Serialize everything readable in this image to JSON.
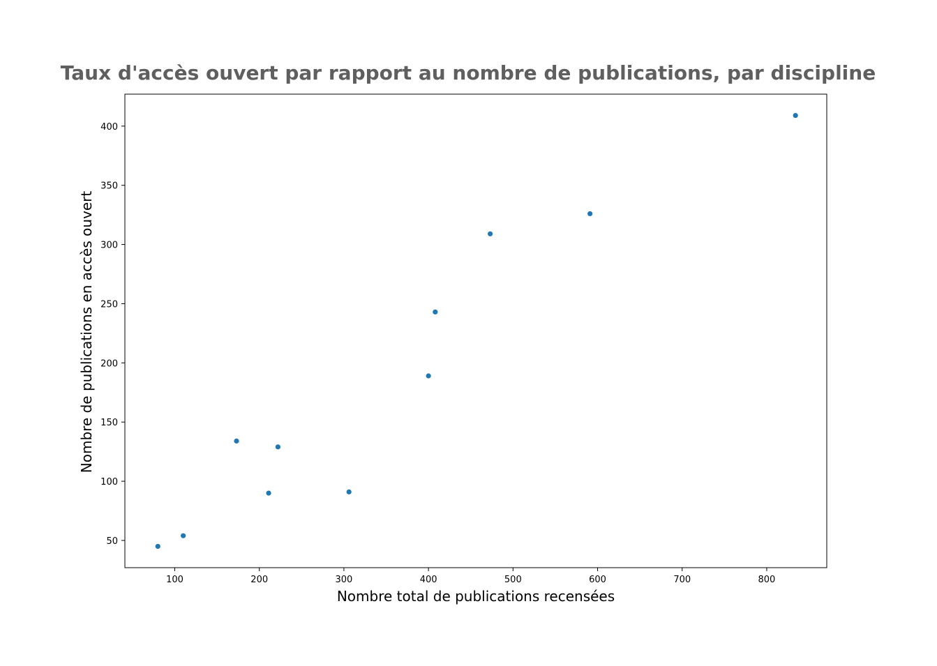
{
  "chart_data": {
    "type": "scatter",
    "title": "Taux d'accès ouvert par rapport au nombre de publications, par discipline",
    "xlabel": "Nombre total de publications recensées",
    "ylabel": "Nombre de publications en accès ouvert",
    "xlim": [
      41,
      871
    ],
    "ylim": [
      27,
      427
    ],
    "xticks": [
      100,
      200,
      300,
      400,
      500,
      600,
      700,
      800
    ],
    "yticks": [
      50,
      100,
      150,
      200,
      250,
      300,
      350,
      400
    ],
    "grid": false,
    "point_color": "#1f77b4",
    "title_color": "#5f5f5f",
    "points": [
      {
        "x": 80,
        "y": 45
      },
      {
        "x": 110,
        "y": 54
      },
      {
        "x": 173,
        "y": 134
      },
      {
        "x": 211,
        "y": 90
      },
      {
        "x": 222,
        "y": 129
      },
      {
        "x": 306,
        "y": 91
      },
      {
        "x": 400,
        "y": 189
      },
      {
        "x": 408,
        "y": 243
      },
      {
        "x": 473,
        "y": 309
      },
      {
        "x": 591,
        "y": 326
      },
      {
        "x": 834,
        "y": 409
      }
    ]
  }
}
